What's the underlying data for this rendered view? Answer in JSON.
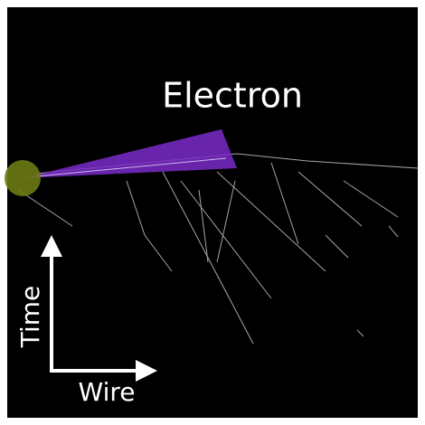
{
  "labels": {
    "particle": "Electron",
    "y_axis": "Time",
    "x_axis": "Wire"
  }
}
